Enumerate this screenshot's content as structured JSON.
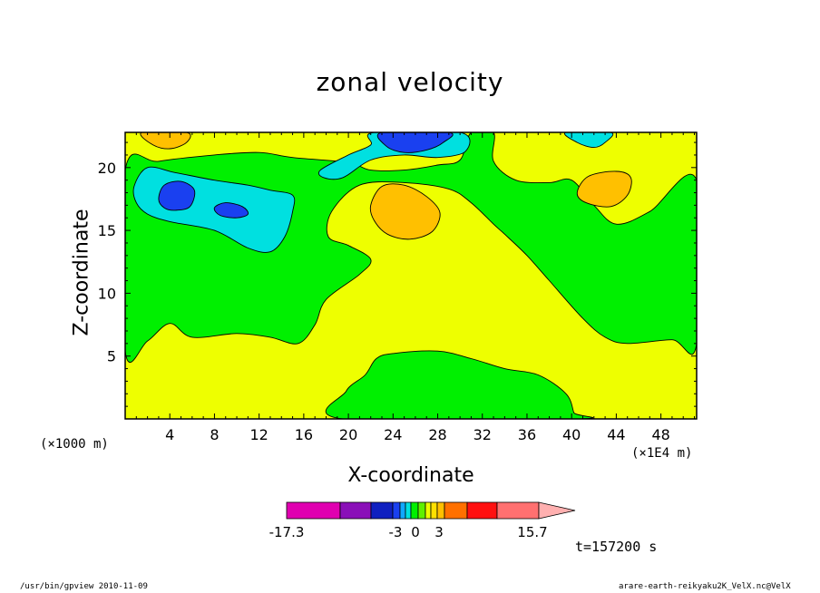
{
  "chart_data": {
    "type": "heatmap",
    "subtype": "filled-contour",
    "title": "zonal velocity",
    "xlabel": "X-coordinate",
    "ylabel": "Z-coordinate",
    "x_unit_label": "(×1000 m)",
    "x_scale_label": "(×1E4 m)",
    "xlim": [
      0,
      51.2
    ],
    "ylim": [
      0,
      22.8
    ],
    "xticks": [
      4,
      8,
      12,
      16,
      20,
      24,
      28,
      32,
      36,
      40,
      44,
      48
    ],
    "yticks": [
      5,
      10,
      15,
      20
    ],
    "time_label": "t=157200 s",
    "colorbar": {
      "labels": [
        {
          "text": "-17.3",
          "value": -17.3
        },
        {
          "text": "-3",
          "value": -3
        },
        {
          "text": "0",
          "value": 0
        },
        {
          "text": "3",
          "value": 3
        },
        {
          "text": "15.7",
          "value": 15.7
        }
      ],
      "levels": [
        {
          "color": "#e000b0"
        },
        {
          "color": "#8a10b8"
        },
        {
          "color": "#1020c0"
        },
        {
          "color": "#1a40f0"
        },
        {
          "color": "#10a8ff"
        },
        {
          "color": "#00e0e0"
        },
        {
          "color": "#00f000"
        },
        {
          "color": "#60f000"
        },
        {
          "color": "#eeff00"
        },
        {
          "color": "#ffe000"
        },
        {
          "color": "#ffc000"
        },
        {
          "color": "#ff7000"
        },
        {
          "color": "#ff1010"
        },
        {
          "color": "#ff7070"
        },
        {
          "color": "#ffb0b0"
        }
      ]
    },
    "regions": [
      {
        "level": "-3..0 (green)",
        "color": "#00f000",
        "polygon": [
          [
            0,
            19.8
          ],
          [
            3,
            20.5
          ],
          [
            8,
            21
          ],
          [
            12,
            21.2
          ],
          [
            15,
            20.8
          ],
          [
            20,
            20.4
          ],
          [
            22,
            19.8
          ],
          [
            25,
            19.8
          ],
          [
            28,
            20.2
          ],
          [
            30,
            20.6
          ],
          [
            31,
            22.8
          ],
          [
            33,
            22.8
          ],
          [
            33,
            20.5
          ],
          [
            35,
            19
          ],
          [
            38,
            18.8
          ],
          [
            40,
            19
          ],
          [
            42,
            17
          ],
          [
            44,
            15.5
          ],
          [
            47,
            16.5
          ],
          [
            51.2,
            19
          ],
          [
            51.2,
            6
          ],
          [
            49,
            6.3
          ],
          [
            45,
            6
          ],
          [
            43,
            6.5
          ],
          [
            41,
            8
          ],
          [
            38,
            11
          ],
          [
            36,
            13
          ],
          [
            34,
            14.7
          ],
          [
            33,
            15.5
          ],
          [
            31,
            17.2
          ],
          [
            29,
            18.3
          ],
          [
            25,
            18.8
          ],
          [
            21,
            18.6
          ],
          [
            18.5,
            16.5
          ],
          [
            18.2,
            14.5
          ],
          [
            20,
            13.8
          ],
          [
            22,
            12.7
          ],
          [
            21,
            11.5
          ],
          [
            18,
            9.5
          ],
          [
            17,
            7.5
          ],
          [
            15.5,
            6
          ],
          [
            13,
            6.5
          ],
          [
            10,
            6.8
          ],
          [
            6,
            6.5
          ],
          [
            4,
            7.6
          ],
          [
            2,
            6.2
          ],
          [
            0,
            5.4
          ]
        ]
      },
      {
        "level": "-3..0 (green, lower)",
        "color": "#00f000",
        "polygon": [
          [
            19.5,
            0
          ],
          [
            19.8,
            2.2
          ],
          [
            21.5,
            3.5
          ],
          [
            22.5,
            4.8
          ],
          [
            24,
            5.2
          ],
          [
            28,
            5.4
          ],
          [
            31,
            4.8
          ],
          [
            34,
            4
          ],
          [
            37,
            3.5
          ],
          [
            39.5,
            2
          ],
          [
            40.2,
            0.5
          ],
          [
            40.4,
            0
          ]
        ]
      },
      {
        "level": "-6..-3 (cyan)",
        "color": "#00e0e0",
        "polygon": [
          [
            0.8,
            18.5
          ],
          [
            2,
            20
          ],
          [
            4.5,
            19.6
          ],
          [
            8,
            19
          ],
          [
            11,
            18.6
          ],
          [
            13,
            18.2
          ],
          [
            15,
            17.8
          ],
          [
            15,
            16.5
          ],
          [
            14.3,
            14.5
          ],
          [
            13,
            13.3
          ],
          [
            11,
            13.6
          ],
          [
            8,
            15
          ],
          [
            4,
            15.7
          ],
          [
            2,
            16.3
          ],
          [
            1,
            17.2
          ]
        ]
      },
      {
        "level": "-6..-3 (cyan, top)",
        "color": "#00e0e0",
        "polygon": [
          [
            17.5,
            19.8
          ],
          [
            20,
            21
          ],
          [
            22,
            21.8
          ],
          [
            22.3,
            22.8
          ],
          [
            30,
            22.8
          ],
          [
            30.5,
            21.3
          ],
          [
            28,
            20.8
          ],
          [
            25,
            21
          ],
          [
            22,
            20.6
          ],
          [
            19.5,
            19.2
          ],
          [
            17.8,
            19.2
          ]
        ]
      },
      {
        "level": "-6..-3 (cyan, right)",
        "color": "#00e0e0",
        "polygon": [
          [
            39.5,
            22.8
          ],
          [
            43.5,
            22.8
          ],
          [
            43,
            22
          ],
          [
            42,
            21.6
          ],
          [
            40.5,
            22
          ]
        ]
      },
      {
        "level": "-9..-6 (blue)",
        "color": "#1a40f0",
        "polygon": [
          [
            3,
            17.5
          ],
          [
            3.5,
            18.6
          ],
          [
            5,
            18.9
          ],
          [
            6.2,
            18.2
          ],
          [
            5.8,
            16.9
          ],
          [
            4.5,
            16.6
          ],
          [
            3.5,
            16.8
          ]
        ]
      },
      {
        "level": "-9..-6 (blue, 2)",
        "color": "#1a40f0",
        "polygon": [
          [
            8,
            16.8
          ],
          [
            9,
            17.2
          ],
          [
            10.5,
            16.9
          ],
          [
            11,
            16.3
          ],
          [
            10,
            16
          ],
          [
            8.5,
            16.2
          ]
        ]
      },
      {
        "level": "-9..-6 (blue, top)",
        "color": "#1a40f0",
        "polygon": [
          [
            23,
            22.8
          ],
          [
            29,
            22.8
          ],
          [
            28.5,
            22
          ],
          [
            27,
            21.4
          ],
          [
            25,
            21.2
          ],
          [
            23.4,
            21.7
          ]
        ]
      },
      {
        "level": "3..6 (orange)",
        "color": "#ffc000",
        "polygon": [
          [
            1.5,
            22.8
          ],
          [
            5.5,
            22.8
          ],
          [
            5.5,
            22
          ],
          [
            4,
            21.5
          ],
          [
            2.5,
            21.8
          ]
        ]
      },
      {
        "level": "3..6 (orange, center)",
        "color": "#ffc000",
        "polygon": [
          [
            22,
            17
          ],
          [
            23,
            18.5
          ],
          [
            25,
            18.6
          ],
          [
            27,
            17.7
          ],
          [
            28.2,
            16.4
          ],
          [
            27.5,
            14.9
          ],
          [
            25.5,
            14.3
          ],
          [
            23.5,
            14.7
          ],
          [
            22.3,
            15.8
          ]
        ]
      },
      {
        "level": "3..6 (orange, right)",
        "color": "#ffc000",
        "polygon": [
          [
            40.5,
            18
          ],
          [
            41.5,
            19.3
          ],
          [
            44,
            19.7
          ],
          [
            45.3,
            19.2
          ],
          [
            45,
            17.8
          ],
          [
            43.5,
            16.9
          ],
          [
            41.3,
            17.2
          ]
        ]
      }
    ]
  },
  "labels": {
    "footer_left": "/usr/bin/gpview   2010-11-09",
    "footer_right": "arare-earth-reikyaku2K_VelX.nc@VelX"
  }
}
